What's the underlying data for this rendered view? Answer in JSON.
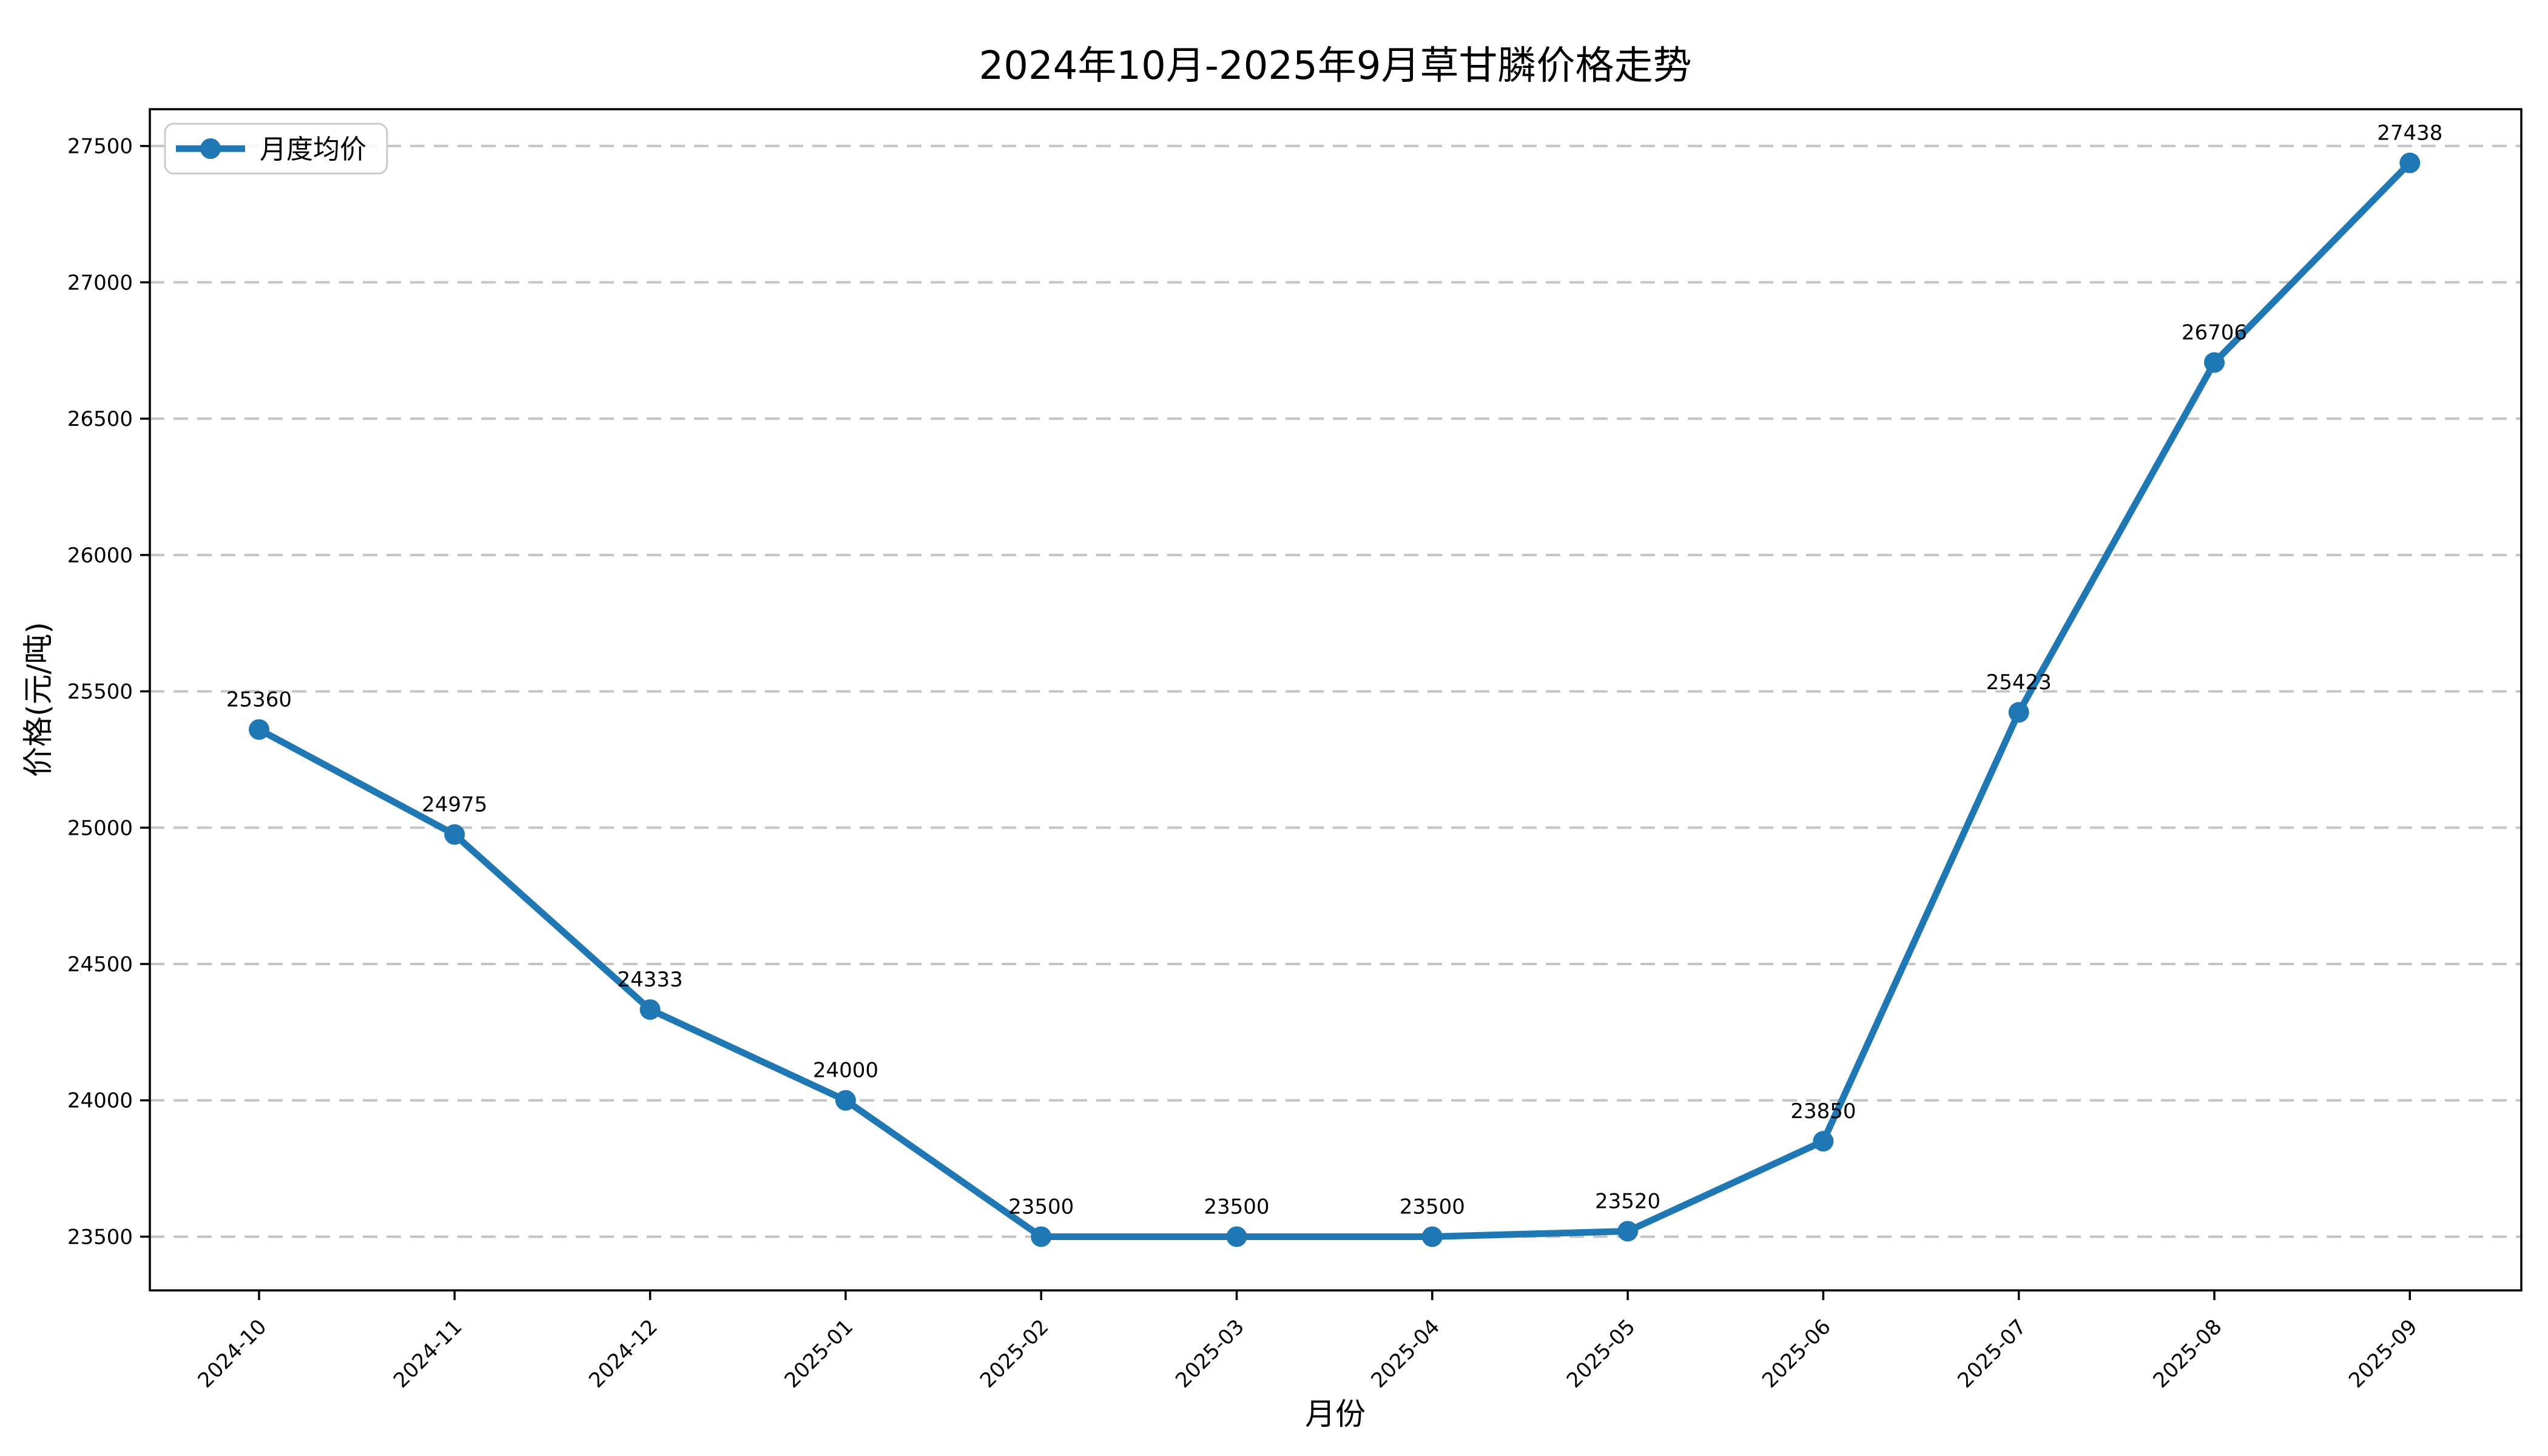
{
  "title": "2024年10月-2025年9月草甘膦价格走势",
  "chart_data": {
    "type": "line",
    "title": "2024年10月-2025年9月草甘膦价格走势",
    "xlabel": "月份",
    "ylabel": "价格(元/吨)",
    "legend": {
      "position": "upper left",
      "entries": [
        "月度均价"
      ]
    },
    "categories": [
      "2024-10",
      "2024-11",
      "2024-12",
      "2025-01",
      "2025-02",
      "2025-03",
      "2025-04",
      "2025-05",
      "2025-06",
      "2025-07",
      "2025-08",
      "2025-09"
    ],
    "series": [
      {
        "name": "月度均价",
        "values": [
          25360,
          24975,
          24333,
          24000,
          23500,
          23500,
          23500,
          23520,
          23850,
          25423,
          26706,
          27438
        ]
      }
    ],
    "data_labels": [
      "25360",
      "24975",
      "24333",
      "24000",
      "23500",
      "23500",
      "23500",
      "23520",
      "23850",
      "25423",
      "26706",
      "27438"
    ],
    "yticks": [
      23500,
      24000,
      24500,
      25000,
      25500,
      26000,
      26500,
      27000,
      27500
    ],
    "ylim": [
      23303,
      27635
    ],
    "grid": "horizontal dashed",
    "marker": "circle",
    "colors": {
      "line": "#1f77b4",
      "marker": "#1f77b4",
      "grid": "#c4c4c4",
      "spine": "#000000",
      "text": "#000000",
      "legend_border": "#cccccc",
      "background": "#ffffff"
    }
  }
}
